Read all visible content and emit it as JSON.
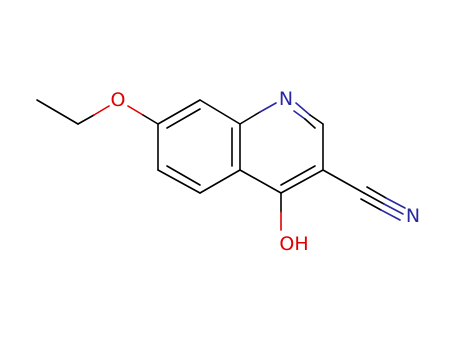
{
  "atoms": [
    {
      "label": "O"
    },
    {
      "label": "N"
    },
    {
      "label": "N"
    },
    {
      "label": "OH"
    }
  ]
}
